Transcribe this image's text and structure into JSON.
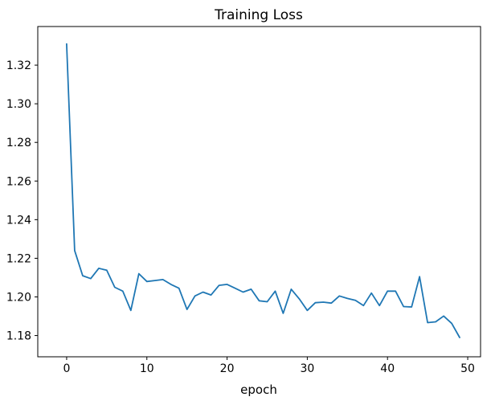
{
  "chart_data": {
    "type": "line",
    "title": "Training Loss",
    "xlabel": "epoch",
    "ylabel": "",
    "x": [
      0,
      1,
      2,
      3,
      4,
      5,
      6,
      7,
      8,
      9,
      10,
      11,
      12,
      13,
      14,
      15,
      16,
      17,
      18,
      19,
      20,
      21,
      22,
      23,
      24,
      25,
      26,
      27,
      28,
      29,
      30,
      31,
      32,
      33,
      34,
      35,
      36,
      37,
      38,
      39,
      40,
      41,
      42,
      43,
      44,
      45,
      46,
      47,
      48,
      49
    ],
    "values": [
      1.331,
      1.224,
      1.211,
      1.2095,
      1.2148,
      1.2138,
      1.205,
      1.203,
      1.193,
      1.212,
      1.208,
      1.2085,
      1.209,
      1.2065,
      1.2045,
      1.1935,
      1.2005,
      1.2025,
      1.201,
      1.206,
      1.2065,
      1.2045,
      1.2025,
      1.204,
      1.198,
      1.1975,
      1.203,
      1.1915,
      1.204,
      1.199,
      1.193,
      1.197,
      1.1973,
      1.1968,
      1.2005,
      1.1992,
      1.1982,
      1.1955,
      1.202,
      1.1955,
      1.203,
      1.203,
      1.195,
      1.1948,
      1.2105,
      1.1867,
      1.1871,
      1.1901,
      1.1863,
      1.179
    ],
    "x_ticks": [
      0,
      10,
      20,
      30,
      40,
      50
    ],
    "y_ticks": [
      1.18,
      1.2,
      1.22,
      1.24,
      1.26,
      1.28,
      1.3,
      1.32
    ],
    "xlim": [
      -3.6,
      51.6
    ],
    "ylim": [
      1.169,
      1.34
    ],
    "grid": false,
    "legend": null,
    "line_color": "#1f77b4",
    "axis_color": "#000000",
    "background_color": "#ffffff"
  }
}
